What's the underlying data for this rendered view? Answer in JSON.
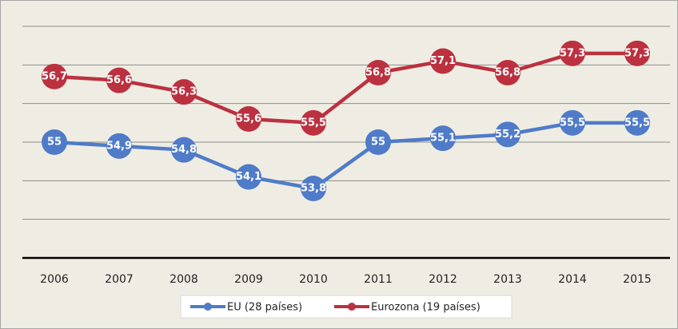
{
  "chart_data": {
    "type": "line",
    "categories": [
      "2006",
      "2007",
      "2008",
      "2009",
      "2010",
      "2011",
      "2012",
      "2013",
      "2014",
      "2015"
    ],
    "series": [
      {
        "name": "EU (28 países)",
        "color": "#4f7bc8",
        "values": [
          55,
          54.9,
          54.8,
          54.1,
          53.8,
          55,
          55.1,
          55.2,
          55.5,
          55.5
        ],
        "value_labels": [
          "55",
          "54,9",
          "54,8",
          "54,1",
          "53,8",
          "55",
          "55,1",
          "55,2",
          "55,5",
          "55,5"
        ]
      },
      {
        "name": "Eurozona (19 países)",
        "color": "#bb3140",
        "values": [
          56.7,
          56.6,
          56.3,
          55.6,
          55.5,
          56.8,
          57.1,
          56.8,
          57.3,
          57.3
        ],
        "value_labels": [
          "56,7",
          "56,6",
          "56,3",
          "55,6",
          "55,5",
          "56,8",
          "57,1",
          "56,8",
          "57,3",
          "57,3"
        ]
      }
    ],
    "ylim": [
      52,
      58
    ],
    "yticks": [
      52,
      53,
      54,
      55,
      56,
      57,
      58
    ],
    "grid": true,
    "legend": "bottom"
  }
}
